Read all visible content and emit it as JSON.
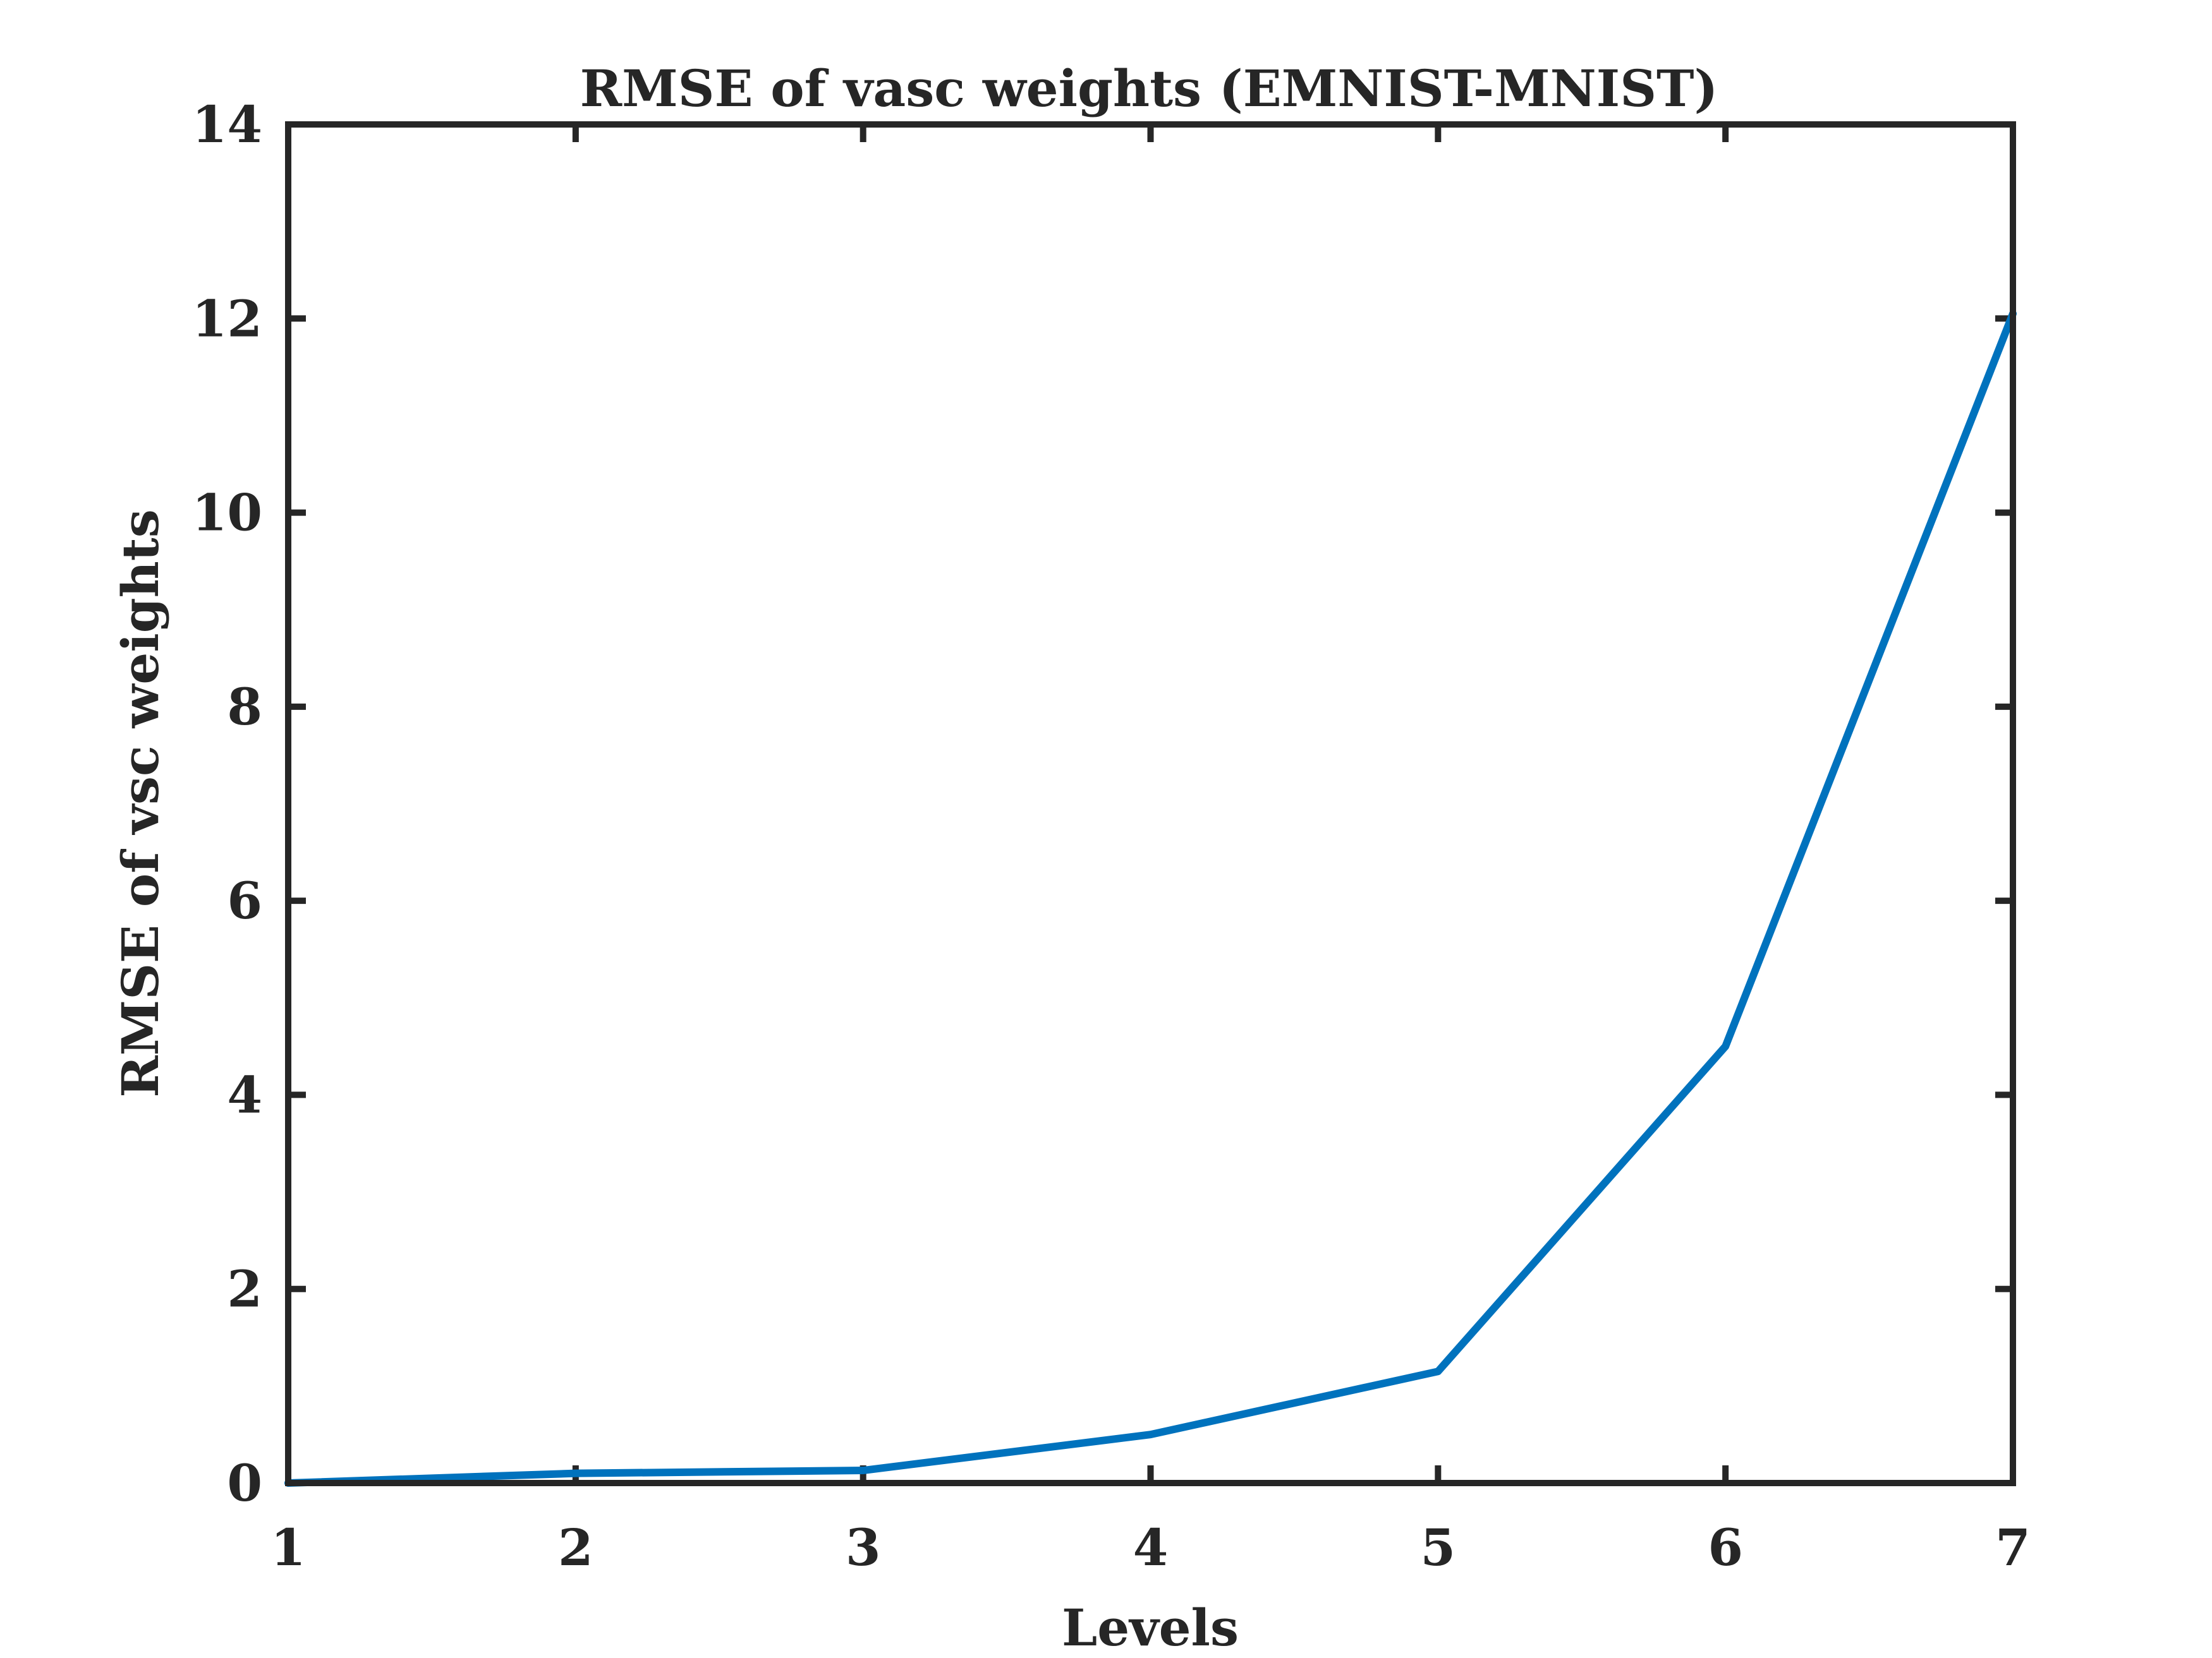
{
  "chart_data": {
    "type": "line",
    "title": "RMSE of vasc weights (EMNIST-MNIST)",
    "xlabel": "Levels",
    "ylabel": "RMSE of vsc weights",
    "xlim": [
      1,
      7
    ],
    "ylim": [
      0,
      14
    ],
    "xticks": [
      1,
      2,
      3,
      4,
      5,
      6,
      7
    ],
    "yticks": [
      0,
      2,
      4,
      6,
      8,
      10,
      12,
      14
    ],
    "grid": false,
    "series": [
      {
        "color": "#0072BD",
        "x": [
          1,
          2,
          3,
          4,
          5,
          6,
          7
        ],
        "y": [
          0.0,
          0.1,
          0.13,
          0.5,
          1.15,
          4.5,
          12.05
        ]
      }
    ]
  }
}
